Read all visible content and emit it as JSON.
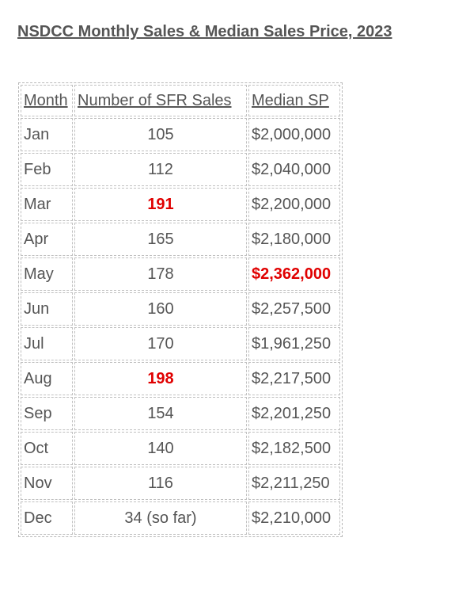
{
  "title": "NSDCC Monthly Sales & Median Sales Price, 2023",
  "table": {
    "headers": [
      "Month",
      "Number of SFR Sales",
      "Median SP"
    ],
    "rows": [
      {
        "month": "Jan",
        "sales": "105",
        "price": "$2,000,000",
        "sales_highlight": false,
        "price_highlight": false
      },
      {
        "month": "Feb",
        "sales": "112",
        "price": "$2,040,000",
        "sales_highlight": false,
        "price_highlight": false
      },
      {
        "month": "Mar",
        "sales": "191",
        "price": "$2,200,000",
        "sales_highlight": true,
        "price_highlight": false
      },
      {
        "month": "Apr",
        "sales": "165",
        "price": "$2,180,000",
        "sales_highlight": false,
        "price_highlight": false
      },
      {
        "month": "May",
        "sales": "178",
        "price": "$2,362,000",
        "sales_highlight": false,
        "price_highlight": true
      },
      {
        "month": "Jun",
        "sales": "160",
        "price": "$2,257,500",
        "sales_highlight": false,
        "price_highlight": false
      },
      {
        "month": "Jul",
        "sales": "170",
        "price": "$1,961,250",
        "sales_highlight": false,
        "price_highlight": false
      },
      {
        "month": "Aug",
        "sales": "198",
        "price": "$2,217,500",
        "sales_highlight": true,
        "price_highlight": false
      },
      {
        "month": "Sep",
        "sales": "154",
        "price": "$2,201,250",
        "sales_highlight": false,
        "price_highlight": false
      },
      {
        "month": "Oct",
        "sales": "140",
        "price": "$2,182,500",
        "sales_highlight": false,
        "price_highlight": false
      },
      {
        "month": "Nov",
        "sales": "116",
        "price": "$2,211,250",
        "sales_highlight": false,
        "price_highlight": false
      },
      {
        "month": "Dec",
        "sales": "34 (so far)",
        "price": "$2,210,000",
        "sales_highlight": false,
        "price_highlight": false
      }
    ]
  },
  "colors": {
    "text": "#555555",
    "highlight": "#e00000",
    "border": "#c0c0c0"
  }
}
